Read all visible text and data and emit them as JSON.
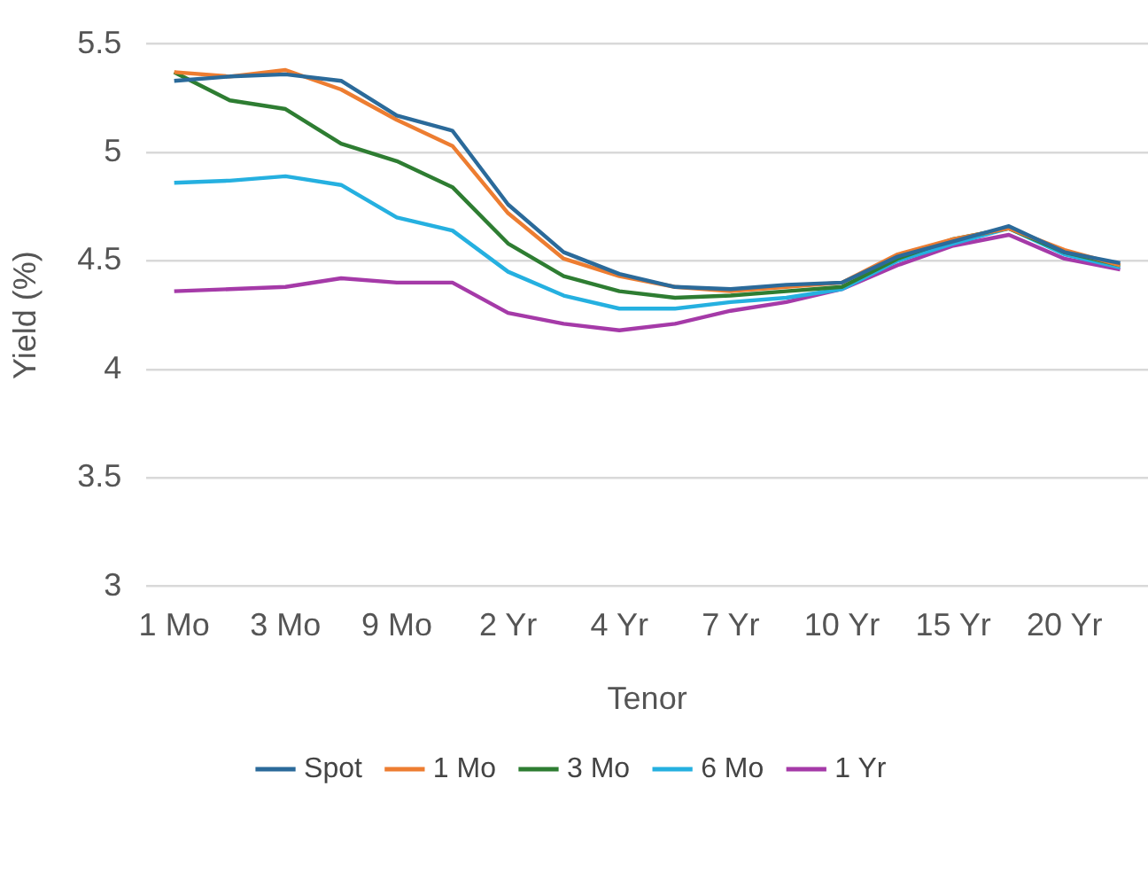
{
  "chart_data": {
    "type": "line",
    "xlabel": "Tenor",
    "ylabel": "Yield (%)",
    "categories": [
      "1 Mo",
      null,
      "3 Mo",
      null,
      "9 Mo",
      null,
      "2 Yr",
      null,
      "4 Yr",
      null,
      "7 Yr",
      null,
      "10 Yr",
      null,
      "15 Yr",
      null,
      "20 Yr",
      null
    ],
    "ylim": [
      3,
      5.5
    ],
    "yticks": [
      3,
      3.5,
      4,
      4.5,
      5,
      5.5
    ],
    "grid": "y",
    "legend": "bottom",
    "marker": "none",
    "line_style": "solid",
    "series": [
      {
        "name": "Spot",
        "color": "#2b6a9a",
        "values": [
          5.33,
          5.35,
          5.36,
          5.33,
          5.17,
          5.1,
          4.76,
          4.54,
          4.44,
          4.38,
          4.37,
          4.39,
          4.4,
          4.52,
          4.59,
          4.66,
          4.54,
          4.49
        ]
      },
      {
        "name": "1 Mo",
        "color": "#ed7d31",
        "values": [
          5.37,
          5.35,
          5.38,
          5.29,
          5.15,
          5.03,
          4.72,
          4.51,
          4.43,
          4.38,
          4.36,
          4.38,
          4.4,
          4.53,
          4.6,
          4.65,
          4.55,
          4.48
        ]
      },
      {
        "name": "3 Mo",
        "color": "#2e7d32",
        "values": [
          5.37,
          5.24,
          5.2,
          5.04,
          4.96,
          4.84,
          4.58,
          4.43,
          4.36,
          4.33,
          4.34,
          4.36,
          4.38,
          4.51,
          4.6,
          4.65,
          4.54,
          4.48
        ]
      },
      {
        "name": "6 Mo",
        "color": "#25b0e0",
        "values": [
          4.86,
          4.87,
          4.89,
          4.85,
          4.7,
          4.64,
          4.45,
          4.34,
          4.28,
          4.28,
          4.31,
          4.33,
          4.37,
          4.5,
          4.58,
          4.65,
          4.53,
          4.47
        ]
      },
      {
        "name": "1 Yr",
        "color": "#a53aa8",
        "values": [
          4.36,
          4.37,
          4.38,
          4.42,
          4.4,
          4.4,
          4.26,
          4.21,
          4.18,
          4.21,
          4.27,
          4.31,
          4.37,
          4.48,
          4.57,
          4.62,
          4.51,
          4.46
        ]
      }
    ]
  }
}
